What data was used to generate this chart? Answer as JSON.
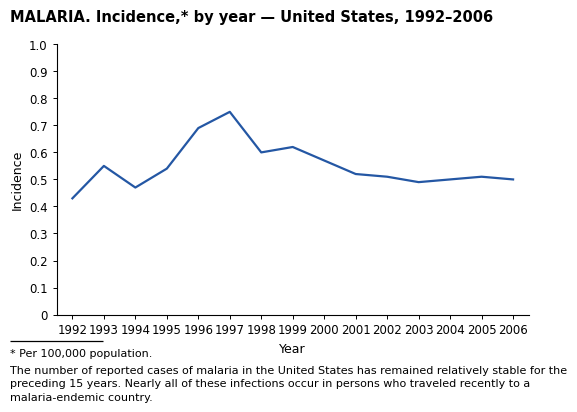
{
  "title": "MALARIA. Incidence,* by year — United States, 1992–2006",
  "years": [
    1992,
    1993,
    1994,
    1995,
    1996,
    1997,
    1998,
    1999,
    2000,
    2001,
    2002,
    2003,
    2004,
    2005,
    2006
  ],
  "values": [
    0.43,
    0.55,
    0.47,
    0.54,
    0.69,
    0.75,
    0.6,
    0.62,
    0.57,
    0.52,
    0.51,
    0.49,
    0.5,
    0.51,
    0.5
  ],
  "line_color": "#2457a4",
  "line_width": 1.6,
  "xlabel": "Year",
  "ylabel": "Incidence",
  "ylim": [
    0,
    1.0
  ],
  "yticks": [
    0,
    0.1,
    0.2,
    0.3,
    0.4,
    0.5,
    0.6,
    0.7,
    0.8,
    0.9,
    1.0
  ],
  "footnote1": "* Per 100,000 population.",
  "footnote2": "The number of reported cases of malaria in the United States has remained relatively stable for the\npreceding 15 years. Nearly all of these infections occur in persons who traveled recently to a\nmalaria-endemic country.",
  "background_color": "#ffffff",
  "title_fontsize": 10.5,
  "axis_label_fontsize": 9,
  "tick_fontsize": 8.5,
  "footnote_fontsize": 8.0
}
